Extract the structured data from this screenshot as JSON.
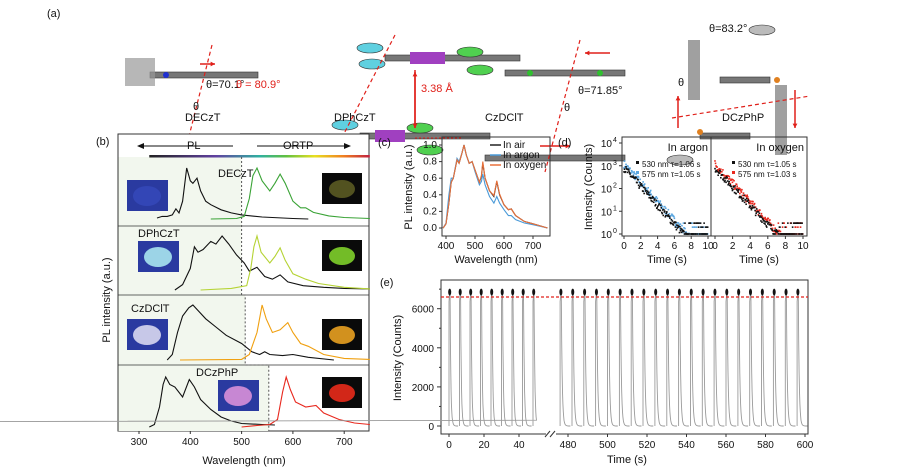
{
  "panel_a": {
    "label": "(a)",
    "molecules": [
      "DECzT",
      "DPhCzT",
      "CzDClT",
      "DCzPhP"
    ],
    "angles": [
      "θ=70.1°",
      "θ = 80.9°",
      "θ=71.85°",
      "θ=83.2°"
    ],
    "theta_symbol": "θ",
    "distance": "3.38 Å"
  },
  "chart_data": [
    {
      "panel": "(b)",
      "type": "line",
      "xlabel": "Wavelength (nm)",
      "ylabel": "PL intensity (a.u.)",
      "xlim": [
        260,
        750
      ],
      "xticks": [
        300,
        400,
        500,
        600,
        700
      ],
      "header": {
        "left": "PL",
        "right": "ORTP"
      },
      "rows": [
        {
          "name": "DECzT",
          "ortp_color": "#3aa336",
          "photo_left": "#3448b8",
          "photo_right": "#5a5a22",
          "pl": [
            [
              335,
              0.02
            ],
            [
              345,
              0.05
            ],
            [
              355,
              0.05
            ],
            [
              365,
              0.08
            ],
            [
              372,
              0.2
            ],
            [
              378,
              0.12
            ],
            [
              385,
              0.35
            ],
            [
              393,
              1.0
            ],
            [
              400,
              0.75
            ],
            [
              405,
              0.7
            ],
            [
              413,
              0.8
            ],
            [
              420,
              0.55
            ],
            [
              430,
              0.35
            ],
            [
              440,
              0.28
            ],
            [
              460,
              0.18
            ],
            [
              480,
              0.12
            ],
            [
              500,
              0.08
            ],
            [
              540,
              0.04
            ],
            [
              600,
              0.01
            ],
            [
              630,
              0.0
            ]
          ],
          "ortp": [
            [
              440,
              0
            ],
            [
              490,
              0.01
            ],
            [
              505,
              0.05
            ],
            [
              515,
              0.4
            ],
            [
              522,
              0.85
            ],
            [
              530,
              1.0
            ],
            [
              540,
              0.75
            ],
            [
              555,
              0.55
            ],
            [
              565,
              0.7
            ],
            [
              575,
              0.88
            ],
            [
              585,
              0.7
            ],
            [
              600,
              0.35
            ],
            [
              615,
              0.22
            ],
            [
              625,
              0.22
            ],
            [
              640,
              0.13
            ],
            [
              670,
              0.06
            ],
            [
              700,
              0.03
            ],
            [
              750,
              0.01
            ]
          ]
        },
        {
          "name": "DPhCzT",
          "ortp_color": "#b5d334",
          "photo_left": "#a8e6ee",
          "photo_right": "#7ecf2a",
          "pl": [
            [
              370,
              0.0
            ],
            [
              385,
              0.1
            ],
            [
              400,
              0.4
            ],
            [
              408,
              0.8
            ],
            [
              415,
              0.7
            ],
            [
              425,
              0.75
            ],
            [
              440,
              0.9
            ],
            [
              450,
              0.85
            ],
            [
              462,
              1.0
            ],
            [
              475,
              0.85
            ],
            [
              490,
              0.65
            ],
            [
              505,
              0.5
            ],
            [
              515,
              0.35
            ],
            [
              530,
              0.42
            ],
            [
              545,
              0.25
            ],
            [
              560,
              0.2
            ],
            [
              575,
              0.28
            ],
            [
              590,
              0.15
            ],
            [
              620,
              0.08
            ],
            [
              660,
              0.05
            ],
            [
              700,
              0.03
            ],
            [
              750,
              0.02
            ]
          ],
          "ortp": [
            [
              420,
              0
            ],
            [
              480,
              0.03
            ],
            [
              510,
              0.08
            ],
            [
              518,
              0.4
            ],
            [
              524,
              0.8
            ],
            [
              530,
              1.0
            ],
            [
              538,
              0.7
            ],
            [
              555,
              0.5
            ],
            [
              565,
              0.62
            ],
            [
              575,
              0.78
            ],
            [
              585,
              0.55
            ],
            [
              600,
              0.3
            ],
            [
              625,
              0.2
            ],
            [
              650,
              0.12
            ],
            [
              700,
              0.05
            ],
            [
              750,
              0.02
            ]
          ]
        },
        {
          "name": "CzDClT",
          "ortp_color": "#f0a010",
          "photo_left": "#d8d8f0",
          "photo_right": "#e8a020",
          "pl": [
            [
              355,
              0.0
            ],
            [
              365,
              0.1
            ],
            [
              375,
              0.5
            ],
            [
              385,
              0.8
            ],
            [
              397,
              0.95
            ],
            [
              405,
              1.0
            ],
            [
              415,
              0.9
            ],
            [
              430,
              0.75
            ],
            [
              450,
              0.6
            ],
            [
              470,
              0.45
            ],
            [
              500,
              0.3
            ],
            [
              520,
              0.15
            ],
            [
              535,
              0.1
            ],
            [
              545,
              0.15
            ],
            [
              555,
              0.1
            ],
            [
              580,
              0.08
            ],
            [
              600,
              0.1
            ],
            [
              630,
              0.05
            ],
            [
              680,
              0.0
            ]
          ],
          "ortp": [
            [
              380,
              0
            ],
            [
              500,
              0.01
            ],
            [
              515,
              0.1
            ],
            [
              530,
              0.5
            ],
            [
              540,
              1.0
            ],
            [
              548,
              0.75
            ],
            [
              560,
              0.5
            ],
            [
              575,
              0.55
            ],
            [
              590,
              0.68
            ],
            [
              600,
              0.5
            ],
            [
              615,
              0.3
            ],
            [
              630,
              0.25
            ],
            [
              660,
              0.1
            ],
            [
              700,
              0.03
            ],
            [
              750,
              0.01
            ]
          ]
        },
        {
          "name": "DCzPhP",
          "ortp_color": "#e8281e",
          "photo_left": "#d890d8",
          "photo_right": "#e82a1a",
          "pl": [
            [
              320,
              0
            ],
            [
              330,
              0.05
            ],
            [
              340,
              0.4
            ],
            [
              347,
              0.85
            ],
            [
              352,
              1.0
            ],
            [
              360,
              0.85
            ],
            [
              370,
              0.8
            ],
            [
              385,
              0.6
            ],
            [
              398,
              0.95
            ],
            [
              408,
              0.8
            ],
            [
              420,
              0.55
            ],
            [
              440,
              0.35
            ],
            [
              460,
              0.2
            ],
            [
              480,
              0.12
            ],
            [
              500,
              0.07
            ],
            [
              540,
              0.05
            ],
            [
              565,
              0.04
            ]
          ],
          "ortp": [
            [
              500,
              0.0
            ],
            [
              530,
              0.03
            ],
            [
              555,
              0.05
            ],
            [
              570,
              0.15
            ],
            [
              580,
              0.7
            ],
            [
              587,
              1.0
            ],
            [
              595,
              0.75
            ],
            [
              605,
              0.5
            ],
            [
              625,
              0.4
            ],
            [
              645,
              0.43
            ],
            [
              660,
              0.28
            ],
            [
              690,
              0.15
            ],
            [
              720,
              0.08
            ],
            [
              750,
              0.05
            ]
          ]
        }
      ]
    },
    {
      "panel": "(c)",
      "type": "line",
      "xlabel": "Wavelength (nm)",
      "ylabel": "PL intensity (a.u.)",
      "xlim": [
        385,
        750
      ],
      "ylim": [
        -0.05,
        1.05
      ],
      "xticks": [
        400,
        500,
        600,
        700
      ],
      "yticks": [
        "0.0",
        "0.2",
        "0.4",
        "0.6",
        "0.8",
        "1.0"
      ],
      "legend": "top-right",
      "series": [
        {
          "name": "In air",
          "color": "#222222",
          "points": [
            [
              390,
              0
            ],
            [
              400,
              0.05
            ],
            [
              410,
              0.3
            ],
            [
              418,
              0.55
            ],
            [
              425,
              0.6
            ],
            [
              438,
              0.82
            ],
            [
              445,
              0.78
            ],
            [
              455,
              0.9
            ],
            [
              462,
              1.0
            ],
            [
              470,
              0.88
            ],
            [
              480,
              0.78
            ],
            [
              490,
              0.8
            ],
            [
              500,
              0.7
            ],
            [
              515,
              0.55
            ],
            [
              522,
              0.62
            ],
            [
              527,
              0.78
            ],
            [
              535,
              0.6
            ],
            [
              550,
              0.45
            ],
            [
              565,
              0.38
            ],
            [
              575,
              0.56
            ],
            [
              585,
              0.4
            ],
            [
              600,
              0.28
            ],
            [
              615,
              0.22
            ],
            [
              625,
              0.23
            ],
            [
              640,
              0.15
            ],
            [
              670,
              0.08
            ],
            [
              700,
              0.05
            ],
            [
              750,
              0.0
            ]
          ]
        },
        {
          "name": "In argon",
          "color": "#4a9ad8",
          "points": [
            [
              390,
              0
            ],
            [
              400,
              0.06
            ],
            [
              410,
              0.4
            ],
            [
              418,
              0.6
            ],
            [
              425,
              0.6
            ],
            [
              438,
              0.84
            ],
            [
              445,
              0.8
            ],
            [
              455,
              0.9
            ],
            [
              462,
              1.0
            ],
            [
              470,
              0.88
            ],
            [
              480,
              0.78
            ],
            [
              490,
              0.8
            ],
            [
              500,
              0.68
            ],
            [
              515,
              0.52
            ],
            [
              522,
              0.56
            ],
            [
              527,
              0.65
            ],
            [
              535,
              0.52
            ],
            [
              550,
              0.38
            ],
            [
              565,
              0.3
            ],
            [
              575,
              0.38
            ],
            [
              585,
              0.3
            ],
            [
              600,
              0.22
            ],
            [
              615,
              0.15
            ],
            [
              625,
              0.15
            ],
            [
              640,
              0.1
            ],
            [
              670,
              0.06
            ],
            [
              700,
              0.04
            ],
            [
              750,
              0.0
            ]
          ]
        },
        {
          "name": "In oxygen",
          "color": "#e8703a",
          "points": [
            [
              390,
              0
            ],
            [
              400,
              0.05
            ],
            [
              410,
              0.3
            ],
            [
              418,
              0.55
            ],
            [
              425,
              0.6
            ],
            [
              438,
              0.82
            ],
            [
              445,
              0.78
            ],
            [
              455,
              0.9
            ],
            [
              462,
              1.0
            ],
            [
              470,
              0.88
            ],
            [
              480,
              0.78
            ],
            [
              490,
              0.8
            ],
            [
              500,
              0.7
            ],
            [
              515,
              0.55
            ],
            [
              522,
              0.63
            ],
            [
              527,
              0.8
            ],
            [
              535,
              0.6
            ],
            [
              550,
              0.45
            ],
            [
              565,
              0.39
            ],
            [
              575,
              0.57
            ],
            [
              585,
              0.41
            ],
            [
              600,
              0.28
            ],
            [
              615,
              0.22
            ],
            [
              625,
              0.23
            ],
            [
              640,
              0.15
            ],
            [
              670,
              0.08
            ],
            [
              700,
              0.05
            ],
            [
              750,
              0.0
            ]
          ]
        }
      ]
    },
    {
      "panel": "(d)",
      "type": "scatter",
      "ylabel": "Intensity (Counts)",
      "yscale": "log",
      "ylim": [
        1,
        10000
      ],
      "yticks": [
        "10",
        "10",
        "10",
        "10",
        "10"
      ],
      "yexp": [
        "0",
        "1",
        "2",
        "3",
        "4"
      ],
      "subplots": [
        {
          "title": "In argon",
          "xlabel": "Time (s)",
          "xlim": [
            0,
            10
          ],
          "xticks": [
            "0",
            "2",
            "4",
            "6",
            "8",
            "10"
          ],
          "series": [
            {
              "name": "530 nm τ=1.06 s",
              "color": "#111111",
              "tau": 1.06,
              "initial": 800
            },
            {
              "name": "575 nm τ=1.05 s",
              "color": "#5aa6e0",
              "tau": 1.05,
              "initial": 1200
            }
          ]
        },
        {
          "title": "In oxygen",
          "xlabel": "Time (s)",
          "xlim": [
            0,
            10
          ],
          "xticks": [
            "0",
            "2",
            "4",
            "6",
            "8",
            "10"
          ],
          "series": [
            {
              "name": "530 nm τ=1.05 s",
              "color": "#111111",
              "tau": 1.05,
              "initial": 800
            },
            {
              "name": "575 nm τ=1.03 s",
              "color": "#e8281e",
              "tau": 1.03,
              "initial": 1200
            }
          ]
        }
      ]
    },
    {
      "panel": "(e)",
      "type": "line",
      "xlabel": "Time (s)",
      "ylabel": "Intensity (Counts)",
      "ylim": [
        -300,
        7500
      ],
      "yticks": [
        0,
        2000,
        4000,
        6000
      ],
      "xticks": [
        0,
        20,
        40,
        480,
        500,
        520,
        540,
        560,
        580,
        600
      ],
      "axis_break": [
        50,
        475
      ],
      "reference_level": 6600,
      "reference_color": "#e0201a",
      "pulse_peak": 6700,
      "pulse_period_s": 6,
      "pulse_starts": [
        0,
        6,
        12,
        18,
        24,
        30,
        36,
        42,
        48,
        476,
        482,
        488,
        494,
        500,
        506,
        512,
        518,
        524,
        530,
        536,
        542,
        548,
        554,
        560,
        566,
        572,
        578,
        584,
        590,
        596
      ]
    }
  ]
}
